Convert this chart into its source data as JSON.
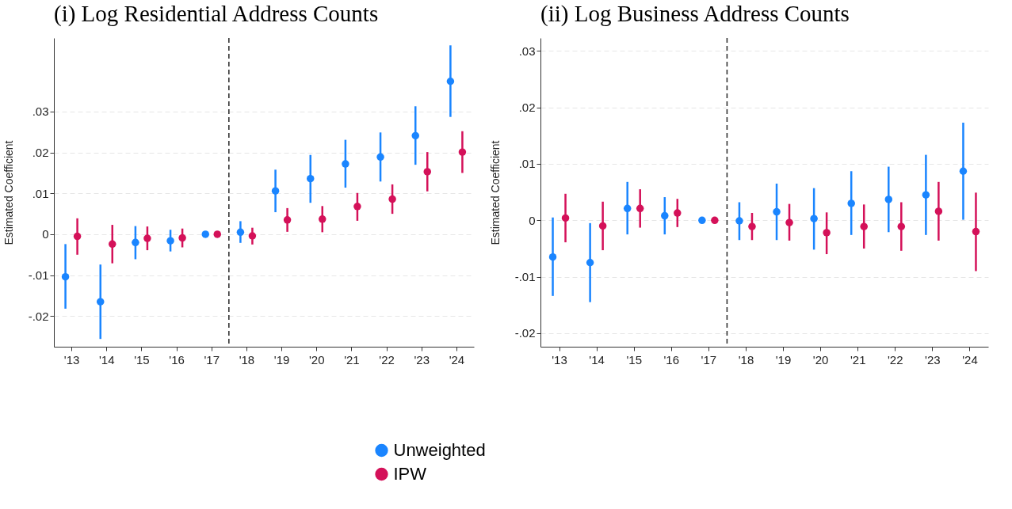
{
  "chart_data": [
    {
      "type": "scatter",
      "title": "(i) Log Residential Address Counts",
      "ylabel": "Estimated Coefficient",
      "xlim": [
        2012.5,
        2024.5
      ],
      "xticks": [
        {
          "value": 2013,
          "label": "'13"
        },
        {
          "value": 2014,
          "label": "'14"
        },
        {
          "value": 2015,
          "label": "'15"
        },
        {
          "value": 2016,
          "label": "'16"
        },
        {
          "value": 2017,
          "label": "'17"
        },
        {
          "value": 2018,
          "label": "'18"
        },
        {
          "value": 2019,
          "label": "'19"
        },
        {
          "value": 2020,
          "label": "'20"
        },
        {
          "value": 2021,
          "label": "'21"
        },
        {
          "value": 2022,
          "label": "'22"
        },
        {
          "value": 2023,
          "label": "'23"
        },
        {
          "value": 2024,
          "label": "'24"
        }
      ],
      "ylim": [
        -0.0275,
        0.048
      ],
      "yticks": [
        {
          "value": -0.02,
          "label": "-.02"
        },
        {
          "value": -0.01,
          "label": "-.01"
        },
        0,
        {
          "value": 0.01,
          "label": ".01"
        },
        {
          "value": 0.02,
          "label": ".02"
        },
        {
          "value": 0.03,
          "label": ".03"
        }
      ],
      "series": [
        {
          "name": "Unweighted",
          "color": "#1a85ff",
          "x": [
            2012.83,
            2013.83,
            2014.83,
            2015.83,
            2016.83,
            2017.83,
            2018.83,
            2019.83,
            2020.83,
            2021.83,
            2022.83,
            2023.83
          ],
          "values": [
            -0.0104,
            -0.0165,
            -0.002,
            -0.0016,
            0,
            0.0005,
            0.0106,
            0.0136,
            0.0172,
            0.0189,
            0.0241,
            0.0374
          ],
          "errors": [
            [
              -0.0182,
              -0.0024
            ],
            [
              -0.0256,
              -0.0074
            ],
            [
              -0.0061,
              0.002
            ],
            [
              -0.0042,
              0.0011
            ],
            null,
            [
              -0.0021,
              0.0032
            ],
            [
              0.0054,
              0.0158
            ],
            [
              0.0077,
              0.0194
            ],
            [
              0.0114,
              0.0231
            ],
            [
              0.0129,
              0.0249
            ],
            [
              0.017,
              0.0313
            ],
            [
              0.0287,
              0.0462
            ]
          ]
        },
        {
          "name": "IPW",
          "color": "#d41159",
          "x": [
            2013.17,
            2014.17,
            2015.17,
            2016.17,
            2017.17,
            2018.17,
            2019.17,
            2020.17,
            2021.17,
            2022.17,
            2023.17,
            2024.17
          ],
          "values": [
            -0.0005,
            -0.0024,
            -0.001,
            -0.0009,
            0,
            -0.0004,
            0.0035,
            0.0037,
            0.0068,
            0.0086,
            0.0153,
            0.0201
          ],
          "errors": [
            [
              -0.005,
              0.0039
            ],
            [
              -0.0071,
              0.0023
            ],
            [
              -0.0039,
              0.0019
            ],
            [
              -0.0032,
              0.0014
            ],
            null,
            [
              -0.0025,
              0.0016
            ],
            [
              0.0006,
              0.0064
            ],
            [
              0.0005,
              0.0069
            ],
            [
              0.0033,
              0.0101
            ],
            [
              0.005,
              0.0122
            ],
            [
              0.0105,
              0.0201
            ],
            [
              0.015,
              0.0252
            ]
          ]
        }
      ],
      "ref_lines": [
        {
          "axis": "x",
          "value": 2017.5,
          "color": "#333333",
          "line_style": "dashed"
        }
      ],
      "grid": "y",
      "marker": "circle",
      "legend": "bottom"
    },
    {
      "type": "scatter",
      "title": "(ii) Log Business Address Counts",
      "ylabel": "Estimated Coefficient",
      "xlim": [
        2012.5,
        2024.5
      ],
      "xticks": [
        {
          "value": 2013,
          "label": "'13"
        },
        {
          "value": 2014,
          "label": "'14"
        },
        {
          "value": 2015,
          "label": "'15"
        },
        {
          "value": 2016,
          "label": "'16"
        },
        {
          "value": 2017,
          "label": "'17"
        },
        {
          "value": 2018,
          "label": "'18"
        },
        {
          "value": 2019,
          "label": "'19"
        },
        {
          "value": 2020,
          "label": "'20"
        },
        {
          "value": 2021,
          "label": "'21"
        },
        {
          "value": 2022,
          "label": "'22"
        },
        {
          "value": 2023,
          "label": "'23"
        },
        {
          "value": 2024,
          "label": "'24"
        }
      ],
      "ylim": [
        -0.0224,
        0.0323
      ],
      "yticks": [
        {
          "value": -0.02,
          "label": "-.02"
        },
        {
          "value": -0.01,
          "label": "-.01"
        },
        0,
        {
          "value": 0.01,
          "label": ".01"
        },
        {
          "value": 0.02,
          "label": ".02"
        },
        {
          "value": 0.03,
          "label": ".03"
        }
      ],
      "series": [
        {
          "color": "#1a85ff",
          "x": [
            2012.83,
            2013.83,
            2014.83,
            2015.83,
            2016.83,
            2017.83,
            2018.83,
            2019.83,
            2020.83,
            2021.83,
            2022.83,
            2023.83
          ],
          "values": [
            -0.0065,
            -0.0075,
            0.0021,
            0.0008,
            0,
            -0.0001,
            0.0015,
            0.0003,
            0.003,
            0.0037,
            0.0045,
            0.0087
          ],
          "errors": [
            [
              -0.0134,
              0.0005
            ],
            [
              -0.0145,
              -0.0005
            ],
            [
              -0.0025,
              0.0068
            ],
            [
              -0.0025,
              0.0041
            ],
            null,
            [
              -0.0035,
              0.0032
            ],
            [
              -0.0035,
              0.0065
            ],
            [
              -0.0052,
              0.0057
            ],
            [
              -0.0026,
              0.0087
            ],
            [
              -0.0021,
              0.0095
            ],
            [
              -0.0026,
              0.0116
            ],
            [
              0.0001,
              0.0173
            ]
          ]
        },
        {
          "color": "#d41159",
          "x": [
            2013.17,
            2014.17,
            2015.17,
            2016.17,
            2017.17,
            2018.17,
            2019.17,
            2020.17,
            2021.17,
            2022.17,
            2023.17,
            2024.17
          ],
          "values": [
            0.0004,
            -0.001,
            0.0021,
            0.0013,
            0,
            -0.0011,
            -0.0004,
            -0.0022,
            -0.0011,
            -0.0011,
            0.0016,
            -0.002
          ],
          "errors": [
            [
              -0.0039,
              0.0047
            ],
            [
              -0.0053,
              0.0033
            ],
            [
              -0.0013,
              0.0055
            ],
            [
              -0.0012,
              0.0038
            ],
            null,
            [
              -0.0035,
              0.0013
            ],
            [
              -0.0036,
              0.0029
            ],
            [
              -0.006,
              0.0014
            ],
            [
              -0.005,
              0.0028
            ],
            [
              -0.0054,
              0.0032
            ],
            [
              -0.0036,
              0.0068
            ],
            [
              -0.009,
              0.0049
            ]
          ]
        }
      ],
      "ref_lines": [
        {
          "axis": "x",
          "value": 2017.5,
          "color": "#333333",
          "line_style": "dashed"
        }
      ],
      "grid": "y",
      "marker": "circle"
    }
  ]
}
